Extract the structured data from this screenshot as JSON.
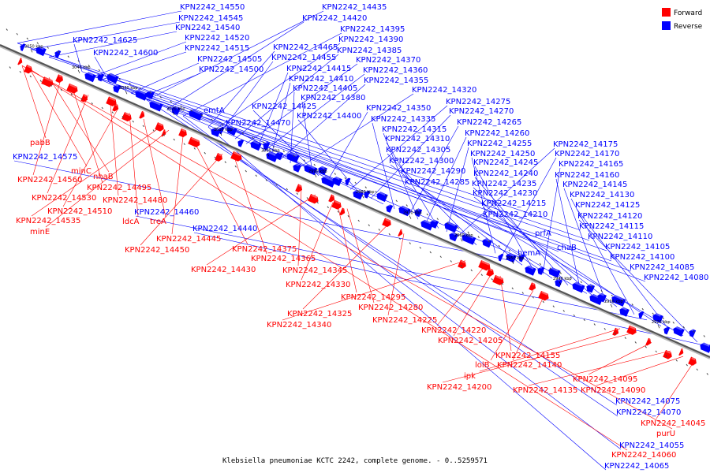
{
  "caption": "Klebsiella pneumoniae KCTC 2242, complete genome. - 0..5259571",
  "legend": {
    "forward_label": "Forward",
    "reverse_label": "Reverse",
    "forward_color": "#ff0000",
    "reverse_color": "#0000ff"
  },
  "colors": {
    "forward": "#ff0000",
    "reverse": "#0000ff",
    "backbone": "#555555"
  },
  "scale_ticks": [
    "3050 kbp",
    "3040 kbp",
    "3030 kbp",
    "3020 kbp",
    "3010 kbp",
    "3000 kbp",
    "2990 kbp",
    "2980 kbp",
    "2970 kbp",
    "2960 kbp",
    "2950 kbp",
    "2940 kbp",
    "2930 kbp",
    "2920 kbp"
  ],
  "reverse_genes": [
    "KPN2242_14550",
    "KPN2242_14545",
    "KPN2242_14540",
    "KPN2242_14625",
    "KPN2242_14520",
    "KPN2242_14515",
    "KPN2242_14600",
    "KPN2242_14505",
    "KPN2242_14500",
    "KPN2242_14435",
    "KPN2242_14420",
    "KPN2242_14395",
    "KPN2242_14465",
    "KPN2242_14390",
    "KPN2242_14455",
    "KPN2242_14385",
    "KPN2242_14370",
    "KPN2242_14415",
    "KPN2242_14360",
    "KPN2242_14410",
    "KPN2242_14355",
    "KPN2242_14405",
    "KPN2242_14320",
    "KPN2242_14380",
    "KPN2242_14425",
    "KPN2242_14350",
    "emtA",
    "KPN2242_14275",
    "KPN2242_14400",
    "KPN2242_14270",
    "KPN2242_14470",
    "KPN2242_14335",
    "KPN2242_14265",
    "KPN2242_14315",
    "KPN2242_14260",
    "KPN2242_14310",
    "KPN2242_14255",
    "KPN2242_14175",
    "KPN2242_14305",
    "KPN2242_14250",
    "KPN2242_14170",
    "KPN2242_14575",
    "KPN2242_14300",
    "KPN2242_14245",
    "KPN2242_14165",
    "KPN2242_14290",
    "KPN2242_14240",
    "KPN2242_14160",
    "KPN2242_14285",
    "KPN2242_14235",
    "KPN2242_14145",
    "KPN2242_14230",
    "KPN2242_14130",
    "KPN2242_14460",
    "KPN2242_14215",
    "KPN2242_14125",
    "KPN2242_14210",
    "KPN2242_14120",
    "KPN2242_14440",
    "prfA",
    "KPN2242_14115",
    "KPN2242_14110",
    "chaB",
    "KPN2242_14105",
    "hemA",
    "KPN2242_14100",
    "KPN2242_14085",
    "KPN2242_14080",
    "KPN2242_14075",
    "KPN2242_14070",
    "KPN2242_14055",
    "KPN2242_14065"
  ],
  "forward_genes": [
    "pabB",
    "minC",
    "nhaB",
    "KPN2242_14560",
    "KPN2242_14495",
    "KPN2242_14530",
    "KPN2242_14480",
    "KPN2242_14510",
    "ldcA",
    "treA",
    "KPN2242_14535",
    "minE",
    "KPN2242_14445",
    "KPN2242_14375",
    "KPN2242_14450",
    "KPN2242_14365",
    "KPN2242_14345",
    "KPN2242_14430",
    "KPN2242_14330",
    "KPN2242_14295",
    "KPN2242_14280",
    "KPN2242_14325",
    "KPN2242_14225",
    "KPN2242_14340",
    "KPN2242_14220",
    "KPN2242_14205",
    "KPN2242_14155",
    "lolB",
    "KPN2242_14140",
    "ipk",
    "KPN2242_14200",
    "KPN2242_14095",
    "KPN2242_14135",
    "KPN2242_14090",
    "KPN2242_14045",
    "purU",
    "KPN2242_14060"
  ]
}
